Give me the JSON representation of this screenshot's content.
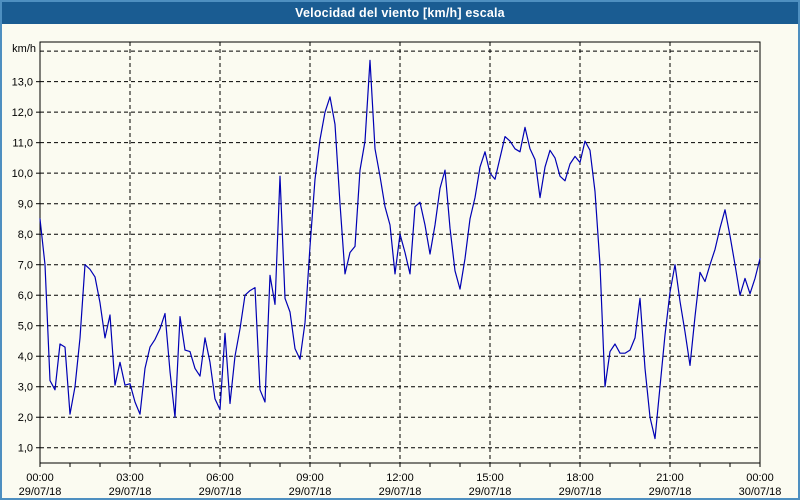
{
  "window": {
    "title": "Velocidad del viento [km/h] escala"
  },
  "chart_data": {
    "type": "line",
    "title": "Velocidad del viento [km/h] escala",
    "ylabel": "km/h",
    "xlabel": "",
    "grid": "dashed",
    "grid_color": "#000000",
    "background_color": "#FBFBF1",
    "title_bar_color": "#1A5C92",
    "window_border_color": "#4E8FC0",
    "line_color": "#0000B4",
    "xlim_hours": [
      0,
      24
    ],
    "ylim": [
      0.5,
      14.3
    ],
    "y_gridline_values": [
      1,
      2,
      3,
      4,
      5,
      6,
      7,
      8,
      9,
      10,
      11,
      12,
      13,
      14
    ],
    "y_tick_values": [
      1,
      2,
      3,
      4,
      5,
      6,
      7,
      8,
      9,
      10,
      11,
      12,
      13
    ],
    "y_tick_labels": [
      "1,0",
      "2,0",
      "3,0",
      "4,0",
      "5,0",
      "6,0",
      "7,0",
      "8,0",
      "9,0",
      "10,0",
      "11,0",
      "12,0",
      "13,0"
    ],
    "x_minor_tick_step_hours": 1,
    "x_ticks": [
      {
        "hour": 0,
        "time": "00:00",
        "date": "29/07/18"
      },
      {
        "hour": 3,
        "time": "03:00",
        "date": "29/07/18"
      },
      {
        "hour": 6,
        "time": "06:00",
        "date": "29/07/18"
      },
      {
        "hour": 9,
        "time": "09:00",
        "date": "29/07/18"
      },
      {
        "hour": 12,
        "time": "12:00",
        "date": "29/07/18"
      },
      {
        "hour": 15,
        "time": "15:00",
        "date": "29/07/18"
      },
      {
        "hour": 18,
        "time": "18:00",
        "date": "29/07/18"
      },
      {
        "hour": 21,
        "time": "21:00",
        "date": "29/07/18"
      },
      {
        "hour": 24,
        "time": "00:00",
        "date": "30/07/18"
      }
    ],
    "series": [
      {
        "name": "Velocidad del viento [km/h]",
        "start": "29/07/18 00:00",
        "end": "30/07/18 00:00",
        "sampling_interval_minutes": 10,
        "values": [
          8.5,
          7.0,
          3.2,
          2.9,
          4.4,
          4.3,
          2.1,
          3.0,
          4.6,
          7.0,
          6.85,
          6.6,
          5.75,
          4.6,
          5.35,
          3.05,
          3.8,
          3.05,
          3.1,
          2.5,
          2.1,
          3.6,
          4.3,
          4.55,
          4.9,
          5.4,
          3.5,
          2.0,
          5.3,
          4.2,
          4.15,
          3.6,
          3.35,
          4.6,
          3.8,
          2.6,
          2.25,
          4.75,
          2.45,
          4.0,
          4.9,
          6.0,
          6.15,
          6.25,
          2.9,
          2.5,
          6.65,
          5.7,
          9.9,
          5.9,
          5.45,
          4.25,
          3.9,
          5.1,
          7.6,
          9.8,
          11.1,
          12.0,
          12.5,
          11.6,
          9.0,
          6.7,
          7.4,
          7.6,
          10.1,
          11.05,
          13.7,
          10.8,
          9.9,
          8.9,
          8.3,
          6.7,
          8.0,
          7.4,
          6.7,
          8.9,
          9.05,
          8.3,
          7.35,
          8.3,
          9.5,
          10.1,
          8.2,
          6.8,
          6.2,
          7.2,
          8.5,
          9.2,
          10.2,
          10.7,
          10.0,
          9.8,
          10.5,
          11.2,
          11.05,
          10.8,
          10.7,
          11.5,
          10.8,
          10.45,
          9.2,
          10.2,
          10.75,
          10.5,
          9.9,
          9.75,
          10.3,
          10.55,
          10.35,
          11.05,
          10.75,
          9.4,
          7.0,
          3.0,
          4.15,
          4.4,
          4.1,
          4.1,
          4.2,
          4.6,
          5.9,
          3.6,
          2.0,
          1.3,
          3.0,
          4.7,
          6.1,
          7.0,
          5.8,
          4.8,
          3.7,
          5.3,
          6.75,
          6.45,
          7.0,
          7.5,
          8.2,
          8.8,
          7.95,
          7.0,
          6.0,
          6.55,
          6.05,
          6.55,
          7.2
        ]
      }
    ]
  }
}
